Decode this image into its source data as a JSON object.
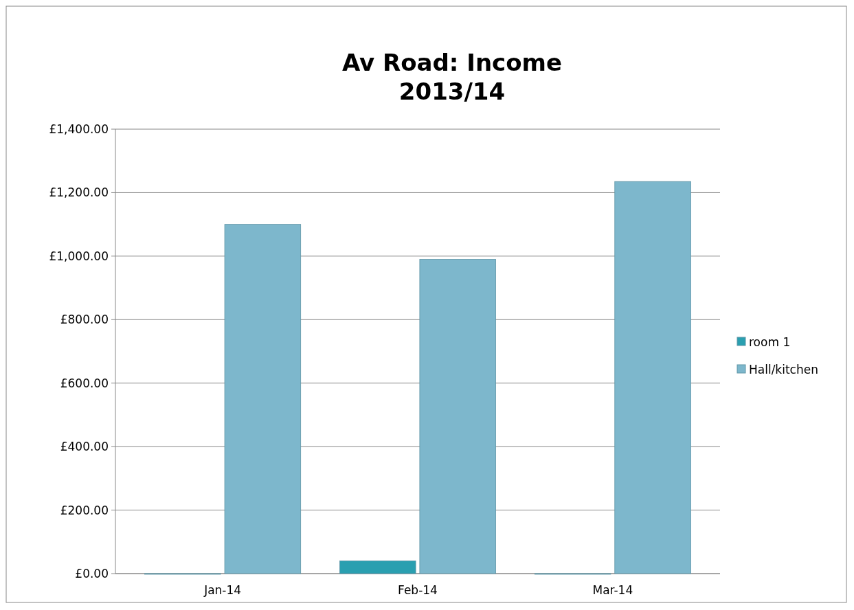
{
  "chart_data": {
    "type": "bar",
    "title": "Av Road: Income\n2013/14",
    "categories": [
      "Jan-14",
      "Feb-14",
      "Mar-14"
    ],
    "series": [
      {
        "name": "room 1",
        "color": "#2a9fb0",
        "values": [
          0,
          40,
          0
        ]
      },
      {
        "name": "Hall/kitchen",
        "color": "#7db7cc",
        "values": [
          1100,
          990,
          1235
        ]
      }
    ],
    "ylim": [
      0,
      1400
    ],
    "yticks": [
      {
        "value": 0,
        "label": "£0.00"
      },
      {
        "value": 200,
        "label": "£200.00"
      },
      {
        "value": 400,
        "label": "£400.00"
      },
      {
        "value": 600,
        "label": "£600.00"
      },
      {
        "value": 800,
        "label": "£800.00"
      },
      {
        "value": 1000,
        "label": "£1,000.00"
      },
      {
        "value": 1200,
        "label": "£1,200.00"
      },
      {
        "value": 1400,
        "label": "£1,400.00"
      }
    ],
    "grid": "y",
    "legend": "right"
  }
}
